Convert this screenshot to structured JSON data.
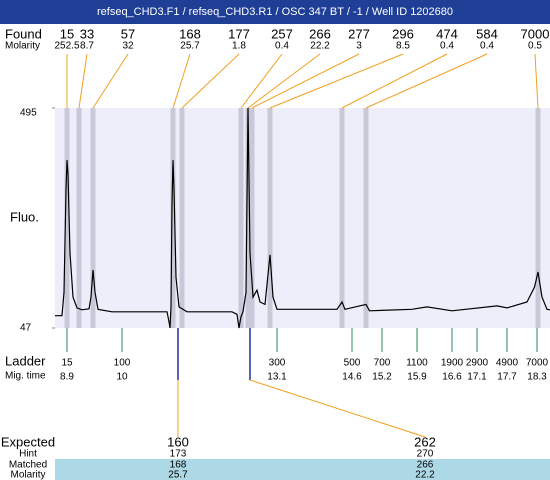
{
  "chart_data": {
    "type": "line",
    "title": "refseq_CHD3.F1 / refseq_CHD3.R1 / OSC 347 BT / -1 / Well ID 1202680",
    "ylabel": "Fluo.",
    "ylim": [
      47,
      495
    ],
    "yticks": [
      47,
      495
    ],
    "xlim": [
      8.66,
      18.56
    ],
    "color": "#000000",
    "x": [
      8.66,
      8.8,
      8.84,
      8.88,
      8.9,
      8.92,
      8.96,
      9.02,
      9.1,
      9.2,
      9.34,
      9.38,
      9.42,
      9.46,
      9.52,
      9.8,
      10.5,
      10.9,
      10.94,
      10.96,
      10.98,
      11.0,
      11.02,
      11.04,
      11.08,
      11.14,
      11.3,
      12.2,
      12.3,
      12.34,
      12.38,
      12.42,
      12.48,
      12.52,
      12.56,
      12.62,
      12.7,
      12.76,
      12.86,
      12.96,
      13.02,
      13.1,
      14.3,
      14.4,
      14.46,
      14.88,
      14.95,
      15.8,
      16.1,
      16.6,
      17.5,
      17.7,
      18.1,
      18.25,
      18.32,
      18.4,
      18.5,
      18.56
    ],
    "values": [
      72,
      72,
      120,
      330,
      389,
      360,
      200,
      110,
      88,
      84,
      86,
      110,
      165,
      120,
      85,
      80,
      80,
      80,
      60,
      47,
      90,
      300,
      389,
      330,
      150,
      90,
      80,
      80,
      75,
      47,
      70,
      80,
      120,
      495,
      200,
      110,
      124,
      100,
      95,
      196,
      110,
      85,
      85,
      100,
      85,
      95,
      82,
      85,
      90,
      82,
      92,
      88,
      100,
      130,
      161,
      110,
      85,
      84
    ],
    "found": {
      "label": "Found",
      "sublabel": "Molarity",
      "sizes": [
        15,
        33,
        57,
        168,
        177,
        257,
        266,
        277,
        296,
        474,
        584,
        7000
      ],
      "molarity": [
        252.5,
        8.7,
        32,
        25.7,
        1.8,
        0.4,
        22.2,
        3,
        8.5,
        0.4,
        0.4,
        0.5
      ],
      "times": [
        8.9,
        9.14,
        9.42,
        11.02,
        11.2,
        12.38,
        12.52,
        12.6,
        12.96,
        14.4,
        14.88,
        18.32
      ]
    },
    "ladder": {
      "label": "Ladder",
      "sublabel": "Mig. time",
      "sizes": [
        15,
        100,
        300,
        500,
        700,
        1100,
        1900,
        2900,
        4900,
        7000
      ],
      "times": [
        8.9,
        10,
        13.1,
        14.6,
        15.2,
        15.9,
        16.6,
        17.1,
        17.7,
        18.3
      ]
    },
    "expected": {
      "label": "Expected",
      "hint_label": "Hint",
      "matched_label": "Matched",
      "molarity_label": "Molarity",
      "values": [
        160,
        262
      ],
      "hint": [
        173,
        270
      ],
      "matched": [
        168,
        266
      ],
      "molarity": [
        25.7,
        22.2
      ],
      "times": [
        11.12,
        12.56
      ]
    }
  }
}
